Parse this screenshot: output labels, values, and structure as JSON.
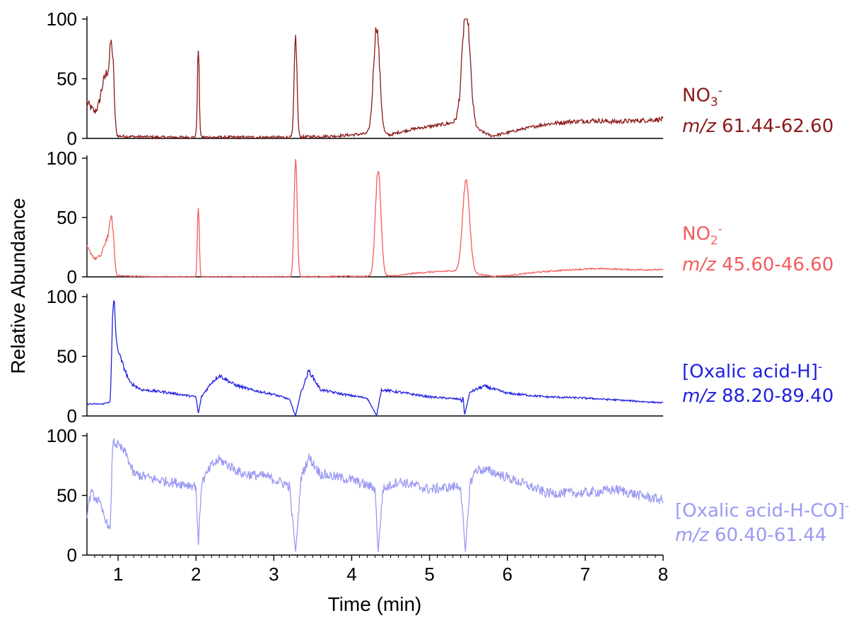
{
  "chart_data": {
    "type": "line",
    "xlabel": "Time (min)",
    "ylabel": "Relative Abundance",
    "xlim": [
      0.6,
      8
    ],
    "x_ticks": [
      "1",
      "2",
      "3",
      "4",
      "5",
      "6",
      "7",
      "8"
    ],
    "y_ticks": [
      "0",
      "50",
      "100"
    ],
    "ylim": [
      0,
      100
    ],
    "grid": false,
    "panels": [
      {
        "ion": "NO",
        "sub": "3",
        "sup": "-",
        "mz_prefix": "m/z",
        "mz_range": "61.44-62.60",
        "color": "#8b1a1a",
        "baseline": [
          [
            0.6,
            30
          ],
          [
            0.7,
            22
          ],
          [
            0.75,
            28
          ],
          [
            0.8,
            45
          ],
          [
            0.85,
            55
          ],
          [
            0.9,
            60
          ],
          [
            0.93,
            2
          ],
          [
            1.5,
            1
          ],
          [
            2.0,
            1
          ],
          [
            3.2,
            1
          ],
          [
            3.8,
            2
          ],
          [
            4.2,
            4
          ],
          [
            4.5,
            3
          ],
          [
            4.6,
            5
          ],
          [
            4.8,
            8
          ],
          [
            5.0,
            10
          ],
          [
            5.2,
            12
          ],
          [
            5.35,
            14
          ],
          [
            5.45,
            12
          ],
          [
            5.6,
            8
          ],
          [
            5.8,
            2
          ],
          [
            5.95,
            4
          ],
          [
            6.2,
            8
          ],
          [
            6.5,
            12
          ],
          [
            6.8,
            14
          ],
          [
            7.1,
            15
          ],
          [
            7.4,
            14
          ],
          [
            7.7,
            15
          ],
          [
            8.0,
            16
          ]
        ],
        "noise": 4,
        "peaks": [
          {
            "x": 0.93,
            "h": 65,
            "w": 0.02
          },
          {
            "x": 2.03,
            "h": 74,
            "w": 0.012
          },
          {
            "x": 3.28,
            "h": 84,
            "w": 0.018
          },
          {
            "x": 4.32,
            "h": 90,
            "w": 0.04
          },
          {
            "x": 5.47,
            "h": 98,
            "w": 0.05
          }
        ]
      },
      {
        "ion": "NO",
        "sub": "2",
        "sup": "-",
        "mz_prefix": "m/z",
        "mz_range": "45.60-46.60",
        "color": "#f25c5c",
        "baseline": [
          [
            0.6,
            25
          ],
          [
            0.7,
            15
          ],
          [
            0.78,
            18
          ],
          [
            0.85,
            32
          ],
          [
            0.9,
            38
          ],
          [
            0.93,
            1
          ],
          [
            1.5,
            0
          ],
          [
            3.2,
            0
          ],
          [
            4.2,
            0.5
          ],
          [
            4.6,
            1
          ],
          [
            4.8,
            3
          ],
          [
            5.0,
            4
          ],
          [
            5.3,
            5
          ],
          [
            5.45,
            4
          ],
          [
            5.8,
            0.5
          ],
          [
            6.0,
            1
          ],
          [
            6.4,
            4
          ],
          [
            6.8,
            6
          ],
          [
            7.2,
            7
          ],
          [
            7.6,
            6
          ],
          [
            8.0,
            6
          ]
        ],
        "noise": 2,
        "peaks": [
          {
            "x": 0.93,
            "h": 40,
            "w": 0.02
          },
          {
            "x": 2.03,
            "h": 59,
            "w": 0.012
          },
          {
            "x": 3.28,
            "h": 99,
            "w": 0.02
          },
          {
            "x": 4.34,
            "h": 90,
            "w": 0.035
          },
          {
            "x": 5.47,
            "h": 78,
            "w": 0.045
          }
        ]
      },
      {
        "ion": "[Oxalic acid-H]",
        "sub": "",
        "sup": "-",
        "mz_prefix": "m/z",
        "mz_range": "88.20-89.40",
        "color": "#1f1fe0",
        "baseline": [
          [
            0.6,
            10
          ],
          [
            0.8,
            10
          ],
          [
            0.9,
            12
          ],
          [
            0.93,
            80
          ],
          [
            0.98,
            60
          ],
          [
            1.05,
            45
          ],
          [
            1.15,
            28
          ],
          [
            1.3,
            22
          ],
          [
            1.6,
            20
          ],
          [
            2.0,
            16
          ],
          [
            2.03,
            2
          ],
          [
            2.07,
            16
          ],
          [
            2.2,
            28
          ],
          [
            2.3,
            34
          ],
          [
            2.5,
            26
          ],
          [
            2.7,
            22
          ],
          [
            3.0,
            18
          ],
          [
            3.2,
            14
          ],
          [
            3.28,
            0
          ],
          [
            3.34,
            18
          ],
          [
            3.45,
            38
          ],
          [
            3.6,
            22
          ],
          [
            3.9,
            18
          ],
          [
            4.2,
            15
          ],
          [
            4.32,
            0
          ],
          [
            4.38,
            22
          ],
          [
            4.6,
            20
          ],
          [
            5.0,
            16
          ],
          [
            5.4,
            14
          ],
          [
            5.45,
            1
          ],
          [
            5.52,
            20
          ],
          [
            5.7,
            25
          ],
          [
            6.0,
            19
          ],
          [
            6.5,
            16
          ],
          [
            7.0,
            15
          ],
          [
            7.5,
            13
          ],
          [
            8.0,
            11
          ]
        ],
        "noise": 1.6,
        "peaks": [
          {
            "x": 0.95,
            "h": 25,
            "w": 0.012
          },
          {
            "x": 5.43,
            "h": 10,
            "w": 0.008
          }
        ]
      },
      {
        "ion": "[Oxalic acid-H-CO]",
        "sub": "",
        "sup": "-",
        "mz_prefix": "m/z",
        "mz_range": "60.40-61.44",
        "color": "#9a9af2",
        "baseline": [
          [
            0.6,
            35
          ],
          [
            0.65,
            52
          ],
          [
            0.75,
            45
          ],
          [
            0.85,
            28
          ],
          [
            0.9,
            20
          ],
          [
            0.93,
            95
          ],
          [
            1.0,
            92
          ],
          [
            1.1,
            85
          ],
          [
            1.2,
            68
          ],
          [
            1.5,
            63
          ],
          [
            1.8,
            60
          ],
          [
            2.0,
            58
          ],
          [
            2.03,
            8
          ],
          [
            2.07,
            60
          ],
          [
            2.2,
            75
          ],
          [
            2.3,
            80
          ],
          [
            2.6,
            68
          ],
          [
            2.9,
            66
          ],
          [
            3.2,
            58
          ],
          [
            3.28,
            2
          ],
          [
            3.35,
            65
          ],
          [
            3.45,
            82
          ],
          [
            3.6,
            68
          ],
          [
            4.0,
            63
          ],
          [
            4.3,
            56
          ],
          [
            4.34,
            2
          ],
          [
            4.4,
            55
          ],
          [
            4.6,
            62
          ],
          [
            5.0,
            55
          ],
          [
            5.4,
            58
          ],
          [
            5.46,
            2
          ],
          [
            5.52,
            60
          ],
          [
            5.6,
            72
          ],
          [
            5.8,
            70
          ],
          [
            6.2,
            60
          ],
          [
            6.5,
            52
          ],
          [
            7.0,
            52
          ],
          [
            7.4,
            55
          ],
          [
            7.7,
            50
          ],
          [
            8.0,
            46
          ]
        ],
        "noise": 3.5,
        "peaks": []
      }
    ]
  }
}
